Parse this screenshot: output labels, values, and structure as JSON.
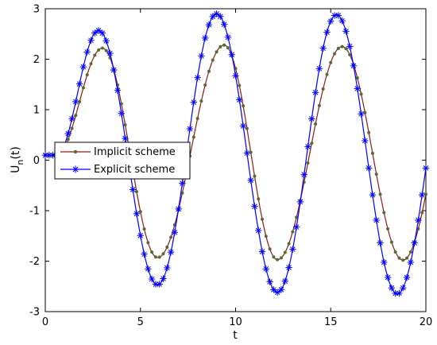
{
  "chart_data": {
    "type": "line",
    "xlabel": "t",
    "ylabel": "U",
    "ylabel_subscript": "n",
    "ylabel_suffix": "(t)",
    "xlim": [
      0,
      20
    ],
    "ylim": [
      -3,
      3
    ],
    "xticks": [
      "0",
      "5",
      "10",
      "15",
      "20"
    ],
    "yticks": [
      "-3",
      "-2",
      "-1",
      "0",
      "1",
      "2",
      "3"
    ],
    "grid": false,
    "legend_position": "center-left",
    "series": [
      {
        "name": "Implicit scheme",
        "color": "#8b1a1a",
        "marker_color": "#556b2f",
        "marker": "dot",
        "peaks": [
          {
            "t": 3.0,
            "u": 2.22
          },
          {
            "t": 9.4,
            "u": 2.28
          },
          {
            "t": 15.6,
            "u": 2.25
          }
        ],
        "troughs": [
          {
            "t": 5.9,
            "u": -1.93
          },
          {
            "t": 12.2,
            "u": -1.97
          },
          {
            "t": 18.8,
            "u": -1.98
          }
        ],
        "start": {
          "t": 0,
          "u": 0.1
        },
        "end": {
          "t": 20,
          "u": -0.75
        }
      },
      {
        "name": "Explicit scheme",
        "color": "#0000ff",
        "marker_color": "#0000ff",
        "marker": "asterisk",
        "peaks": [
          {
            "t": 2.8,
            "u": 2.57
          },
          {
            "t": 9.0,
            "u": 2.9
          },
          {
            "t": 15.3,
            "u": 2.88
          }
        ],
        "troughs": [
          {
            "t": 5.9,
            "u": -2.47
          },
          {
            "t": 12.2,
            "u": -2.62
          },
          {
            "t": 18.5,
            "u": -2.65
          }
        ],
        "start": {
          "t": 0,
          "u": 0.1
        },
        "end": {
          "t": 20,
          "u": 0.0
        }
      }
    ]
  }
}
